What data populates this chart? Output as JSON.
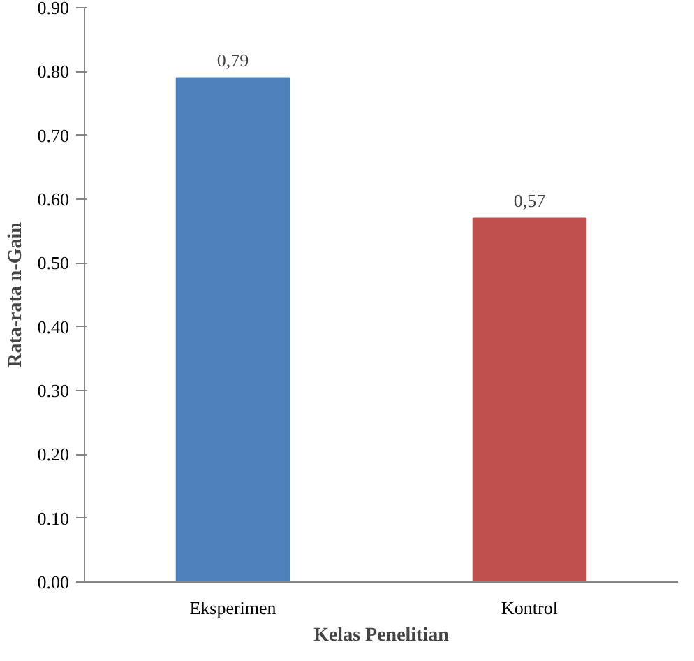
{
  "chart_data": {
    "type": "bar",
    "xlabel": "Kelas Penelitian",
    "ylabel": "Rata-rata n-Gain",
    "categories": [
      "Eksperimen",
      "Kontrol"
    ],
    "values": [
      0.79,
      0.57
    ],
    "colors": [
      "#4f81bd",
      "#c0504d"
    ],
    "value_labels": [
      "0,79",
      "0,57"
    ],
    "ylim": [
      0,
      0.9
    ],
    "yticks": [
      {
        "value": 0,
        "label": "0.00"
      },
      {
        "value": 0.1,
        "label": "0.10"
      },
      {
        "value": 0.2,
        "label": "0.20"
      },
      {
        "value": 0.3,
        "label": "0.30"
      },
      {
        "value": 0.4,
        "label": "0.40"
      },
      {
        "value": 0.5,
        "label": "0.50"
      },
      {
        "value": 0.6,
        "label": "0.60"
      },
      {
        "value": 0.7,
        "label": "0.70"
      },
      {
        "value": 0.8,
        "label": "0.80"
      },
      {
        "value": 0.9,
        "label": "0.90"
      }
    ],
    "grid": false
  }
}
